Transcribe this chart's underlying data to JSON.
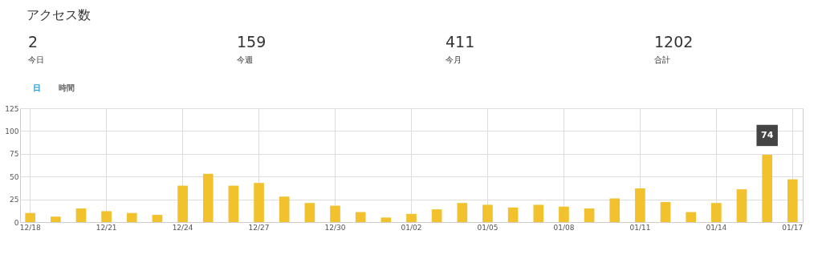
{
  "chart_data": {
    "type": "bar",
    "title": "アクセス数",
    "categories": [
      "12/18",
      null,
      null,
      "12/21",
      null,
      null,
      "12/24",
      null,
      null,
      "12/27",
      null,
      null,
      "12/30",
      null,
      null,
      "01/02",
      null,
      null,
      "01/05",
      null,
      null,
      "01/08",
      null,
      null,
      "01/11",
      null,
      null,
      "01/14",
      null,
      null,
      "01/17"
    ],
    "values": [
      10,
      6,
      15,
      12,
      10,
      8,
      40,
      53,
      40,
      43,
      28,
      21,
      18,
      11,
      5,
      9,
      14,
      21,
      19,
      16,
      19,
      17,
      15,
      26,
      37,
      22,
      11,
      21,
      36,
      74,
      47
    ],
    "color": "#f2c12e",
    "ylim": [
      0,
      125
    ],
    "yticks": [
      0,
      25,
      50,
      75,
      100,
      125
    ],
    "grid": true,
    "annotations": [
      "2",
      "今日",
      "159",
      "今週",
      "411",
      "今月",
      "1202",
      "合計",
      "日",
      "時間",
      {
        "text": "74",
        "y": 74
      }
    ]
  }
}
